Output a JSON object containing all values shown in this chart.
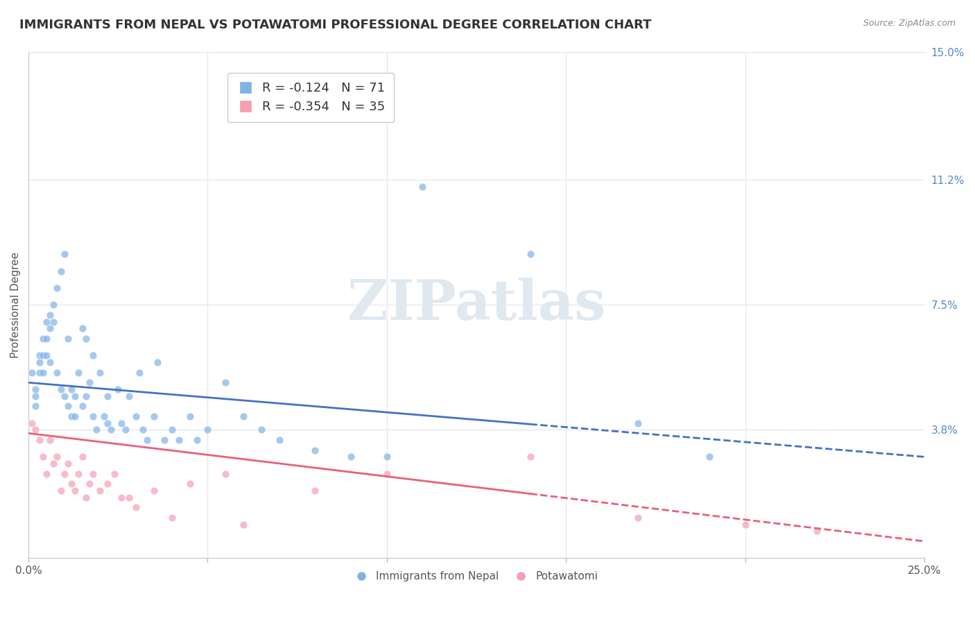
{
  "title": "IMMIGRANTS FROM NEPAL VS POTAWATOMI PROFESSIONAL DEGREE CORRELATION CHART",
  "source": "Source: ZipAtlas.com",
  "xlabel": "",
  "ylabel": "Professional Degree",
  "xlim": [
    0.0,
    0.25
  ],
  "ylim": [
    0.0,
    0.15
  ],
  "xticks": [
    0.0,
    0.05,
    0.1,
    0.15,
    0.2,
    0.25
  ],
  "xticklabels": [
    "0.0%",
    "",
    "",
    "",
    "",
    "25.0%"
  ],
  "yticks_right": [
    0.038,
    0.075,
    0.112,
    0.15
  ],
  "ytick_right_labels": [
    "3.8%",
    "7.5%",
    "11.2%",
    "15.0%"
  ],
  "blue_R": -0.124,
  "blue_N": 71,
  "pink_R": -0.354,
  "pink_N": 35,
  "blue_color": "#7fb3e8",
  "pink_color": "#f4a0b0",
  "blue_label": "Immigrants from Nepal",
  "pink_label": "Potawatomi",
  "watermark": "ZIPatlas",
  "watermark_color": "#e0e8f0",
  "blue_scatter_x": [
    0.001,
    0.002,
    0.002,
    0.002,
    0.003,
    0.003,
    0.003,
    0.004,
    0.004,
    0.004,
    0.005,
    0.005,
    0.005,
    0.006,
    0.006,
    0.006,
    0.007,
    0.007,
    0.008,
    0.008,
    0.009,
    0.009,
    0.01,
    0.01,
    0.011,
    0.011,
    0.012,
    0.012,
    0.013,
    0.013,
    0.014,
    0.015,
    0.015,
    0.016,
    0.016,
    0.017,
    0.018,
    0.018,
    0.019,
    0.02,
    0.021,
    0.022,
    0.022,
    0.023,
    0.025,
    0.026,
    0.027,
    0.028,
    0.03,
    0.031,
    0.032,
    0.033,
    0.035,
    0.036,
    0.038,
    0.04,
    0.042,
    0.045,
    0.047,
    0.05,
    0.055,
    0.06,
    0.065,
    0.07,
    0.08,
    0.09,
    0.1,
    0.11,
    0.14,
    0.17,
    0.19
  ],
  "blue_scatter_y": [
    0.055,
    0.05,
    0.048,
    0.045,
    0.06,
    0.058,
    0.055,
    0.065,
    0.06,
    0.055,
    0.07,
    0.065,
    0.06,
    0.072,
    0.068,
    0.058,
    0.075,
    0.07,
    0.08,
    0.055,
    0.085,
    0.05,
    0.09,
    0.048,
    0.065,
    0.045,
    0.042,
    0.05,
    0.042,
    0.048,
    0.055,
    0.068,
    0.045,
    0.048,
    0.065,
    0.052,
    0.042,
    0.06,
    0.038,
    0.055,
    0.042,
    0.04,
    0.048,
    0.038,
    0.05,
    0.04,
    0.038,
    0.048,
    0.042,
    0.055,
    0.038,
    0.035,
    0.042,
    0.058,
    0.035,
    0.038,
    0.035,
    0.042,
    0.035,
    0.038,
    0.052,
    0.042,
    0.038,
    0.035,
    0.032,
    0.03,
    0.03,
    0.11,
    0.09,
    0.04,
    0.03
  ],
  "pink_scatter_x": [
    0.001,
    0.002,
    0.003,
    0.004,
    0.005,
    0.006,
    0.007,
    0.008,
    0.009,
    0.01,
    0.011,
    0.012,
    0.013,
    0.014,
    0.015,
    0.016,
    0.017,
    0.018,
    0.02,
    0.022,
    0.024,
    0.026,
    0.028,
    0.03,
    0.035,
    0.04,
    0.045,
    0.055,
    0.06,
    0.08,
    0.1,
    0.14,
    0.17,
    0.2,
    0.22
  ],
  "pink_scatter_y": [
    0.04,
    0.038,
    0.035,
    0.03,
    0.025,
    0.035,
    0.028,
    0.03,
    0.02,
    0.025,
    0.028,
    0.022,
    0.02,
    0.025,
    0.03,
    0.018,
    0.022,
    0.025,
    0.02,
    0.022,
    0.025,
    0.018,
    0.018,
    0.015,
    0.02,
    0.012,
    0.022,
    0.025,
    0.01,
    0.02,
    0.025,
    0.03,
    0.012,
    0.01,
    0.008
  ],
  "grid_color": "#e8e8f0",
  "axis_color": "#ccccdd",
  "title_color": "#333333",
  "right_axis_color": "#5588cc",
  "blue_line_color": "#4472c4",
  "pink_line_color": "#e8607a",
  "blue_line_start_x": 0.0,
  "blue_line_end_x": 0.25,
  "blue_line_start_y": 0.052,
  "blue_line_end_y": 0.03,
  "pink_line_start_x": 0.0,
  "pink_line_end_x": 0.25,
  "pink_line_start_y": 0.037,
  "pink_line_end_y": 0.005
}
